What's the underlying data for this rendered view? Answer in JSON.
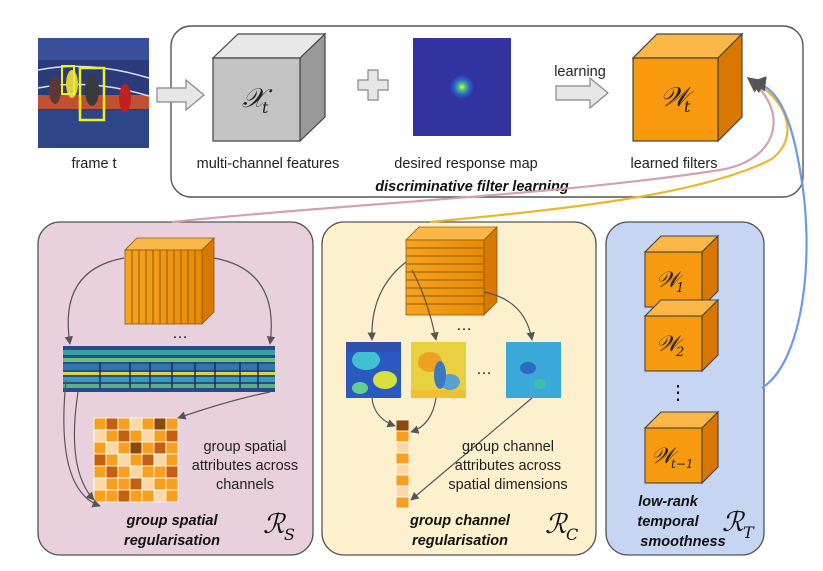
{
  "top": {
    "frame_label": "frame t",
    "features_label": "multi-channel features",
    "response_label": "desired response map",
    "filters_label": "learned filters",
    "learning_label": "learning",
    "caption": "discriminative filter learning",
    "features_symbol": "𝒳",
    "features_sub": "t",
    "filters_symbol": "𝒲",
    "filters_sub": "t"
  },
  "spatial": {
    "title_line1": "group spatial",
    "title_line2": "regularisation",
    "desc_line1": "group spatial",
    "desc_line2": "attributes across",
    "desc_line3": "channels",
    "reg_symbol": "ℛ",
    "reg_sub": "S",
    "ellipsis": "…"
  },
  "channel": {
    "title_line1": "group channel",
    "title_line2": "regularisation",
    "desc_line1": "group channel",
    "desc_line2": "attributes across",
    "desc_line3": "spatial dimensions",
    "reg_symbol": "ℛ",
    "reg_sub": "C",
    "ellipsis": "…"
  },
  "temporal": {
    "title_line1": "low-rank",
    "title_line2": "temporal",
    "title_line3": "smoothness",
    "reg_symbol": "ℛ",
    "reg_sub": "T",
    "cube1_symbol": "𝒲",
    "cube1_sub": "1",
    "cube2_symbol": "𝒲",
    "cube2_sub": "2",
    "cube3_symbol": "𝒲",
    "cube3_sub": "t−1",
    "dots": "⋮"
  },
  "colors": {
    "spatial_panel": "#e8d0dc",
    "channel_panel": "#fdf0cc",
    "temporal_panel": "#c6d6f2",
    "orange": "#f79a10",
    "pink_curve": "#d4a0b4",
    "yellow_curve": "#e8b830",
    "blue_curve": "#6a9ae8"
  }
}
